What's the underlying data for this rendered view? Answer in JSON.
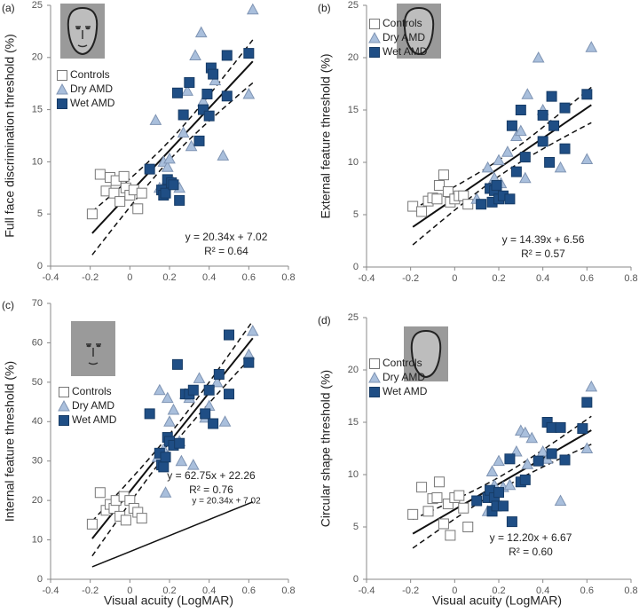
{
  "chart_data": [
    {
      "type": "scatter",
      "panel_label": "(a)",
      "ylabel": "Full face discrimination threshold (%)",
      "xlim": [
        -0.4,
        0.8
      ],
      "xticks": [
        -0.4,
        -0.2,
        0,
        0.2,
        0.4,
        0.6,
        0.8
      ],
      "ylim": [
        0,
        25
      ],
      "yticks": [
        0,
        5,
        10,
        15,
        20,
        25
      ],
      "legend": "upper left",
      "series": [
        {
          "name": "Controls",
          "marker": "square",
          "color": "#ffffff",
          "edge": "#777777",
          "x": [
            -0.19,
            -0.15,
            -0.12,
            -0.1,
            -0.08,
            -0.07,
            -0.05,
            -0.03,
            -0.02,
            0,
            0.02,
            0.04,
            0.06
          ],
          "values": [
            5.0,
            8.8,
            7.2,
            8.5,
            7.0,
            8.2,
            6.2,
            8.6,
            7.5,
            6.8,
            7.3,
            5.5,
            7.0
          ]
        },
        {
          "name": "Dry AMD",
          "marker": "triangle",
          "color": "#a9bfdc",
          "edge": "#7f94b3",
          "x": [
            0.13,
            0.15,
            0.17,
            0.18,
            0.19,
            0.2,
            0.22,
            0.25,
            0.27,
            0.29,
            0.31,
            0.33,
            0.36,
            0.37,
            0.43,
            0.47,
            0.6,
            0.62
          ],
          "values": [
            14,
            7.5,
            10,
            8,
            9.5,
            10.3,
            8,
            7.5,
            12.8,
            16.8,
            11.5,
            20.2,
            22.4,
            15.8,
            17.8,
            10.6,
            16.5,
            24.6
          ]
        },
        {
          "name": "Wet AMD",
          "marker": "square",
          "color": "#1f4e85",
          "edge": "#163b66",
          "x": [
            0.1,
            0.16,
            0.17,
            0.18,
            0.19,
            0.21,
            0.22,
            0.24,
            0.25,
            0.27,
            0.3,
            0.35,
            0.37,
            0.39,
            0.4,
            0.41,
            0.42,
            0.49,
            0.49,
            0.6
          ],
          "values": [
            9.3,
            7.3,
            6.8,
            7.0,
            8.3,
            8.0,
            7.8,
            16.6,
            6.3,
            14.5,
            17.6,
            12,
            15,
            16.5,
            14.4,
            19,
            18.4,
            20.2,
            16.3,
            20.4
          ]
        }
      ],
      "fit": {
        "slope": 20.34,
        "intercept": 7.02,
        "equation": "y = 20.34x + 7.02",
        "r2": "R² = 0.64"
      }
    },
    {
      "type": "scatter",
      "panel_label": "(b)",
      "ylabel": "External feature  threshold (%)",
      "xlim": [
        -0.4,
        0.8
      ],
      "xticks": [
        -0.4,
        -0.2,
        0,
        0.2,
        0.4,
        0.6,
        0.8
      ],
      "ylim": [
        0,
        25
      ],
      "yticks": [
        0,
        5,
        10,
        15,
        20,
        25
      ],
      "legend": "upper left",
      "series": [
        {
          "name": "Controls",
          "marker": "square",
          "color": "#ffffff",
          "edge": "#777777",
          "x": [
            -0.19,
            -0.15,
            -0.12,
            -0.1,
            -0.08,
            -0.07,
            -0.05,
            -0.03,
            -0.02,
            0,
            0.02,
            0.04,
            0.06
          ],
          "values": [
            5.8,
            5.3,
            6.3,
            6.6,
            6.5,
            7.8,
            8.8,
            7.2,
            6.2,
            6.5,
            6.8,
            6.8,
            6.0
          ]
        },
        {
          "name": "Dry AMD",
          "marker": "triangle",
          "color": "#a9bfdc",
          "edge": "#7f94b3",
          "x": [
            0.1,
            0.15,
            0.18,
            0.2,
            0.21,
            0.24,
            0.28,
            0.3,
            0.32,
            0.33,
            0.38,
            0.4,
            0.48,
            0.6,
            0.62
          ],
          "values": [
            6.5,
            9.5,
            8.5,
            10.2,
            8,
            11,
            12.5,
            13,
            8.5,
            16.5,
            20,
            15,
            9.5,
            10.3,
            21
          ]
        },
        {
          "name": "Wet AMD",
          "marker": "square",
          "color": "#1f4e85",
          "edge": "#163b66",
          "x": [
            0.12,
            0.16,
            0.17,
            0.18,
            0.19,
            0.2,
            0.22,
            0.25,
            0.26,
            0.28,
            0.3,
            0.32,
            0.4,
            0.4,
            0.43,
            0.44,
            0.45,
            0.5,
            0.5,
            0.6
          ],
          "values": [
            6,
            7.5,
            6.2,
            7.3,
            7.8,
            6.5,
            6.8,
            6.5,
            13.5,
            9.1,
            15,
            10.5,
            12,
            14.5,
            10,
            16.3,
            13.5,
            15.2,
            11.3,
            16.5
          ]
        }
      ],
      "fit": {
        "slope": 14.39,
        "intercept": 6.56,
        "equation": "y = 14.39x + 6.56",
        "r2": "R² = 0.57"
      }
    },
    {
      "type": "scatter",
      "panel_label": "(c)",
      "ylabel": "Internal feature  threshold (%)",
      "xlabel": "Visual acuity (LogMAR)",
      "xlim": [
        -0.4,
        0.8
      ],
      "xticks": [
        -0.4,
        -0.2,
        0,
        0.2,
        0.4,
        0.6,
        0.8
      ],
      "ylim": [
        0,
        70
      ],
      "yticks": [
        0,
        10,
        20,
        30,
        40,
        50,
        60,
        70
      ],
      "legend": "upper left",
      "series": [
        {
          "name": "Controls",
          "marker": "square",
          "color": "#ffffff",
          "edge": "#777777",
          "x": [
            -0.19,
            -0.15,
            -0.12,
            -0.1,
            -0.08,
            -0.07,
            -0.05,
            -0.03,
            -0.02,
            0,
            0.02,
            0.04,
            0.06
          ],
          "values": [
            14,
            22,
            17.5,
            19,
            18,
            20,
            16,
            21,
            15,
            20,
            18,
            17,
            15.5
          ]
        },
        {
          "name": "Dry AMD",
          "marker": "triangle",
          "color": "#a9bfdc",
          "edge": "#7f94b3",
          "x": [
            0.14,
            0.15,
            0.17,
            0.18,
            0.19,
            0.2,
            0.22,
            0.25,
            0.26,
            0.28,
            0.3,
            0.32,
            0.35,
            0.38,
            0.4,
            0.44,
            0.48,
            0.6,
            0.62
          ],
          "values": [
            31,
            48,
            33,
            22,
            46,
            40,
            43,
            35,
            30,
            47,
            46,
            29,
            51,
            41,
            44,
            50,
            40,
            57,
            63
          ]
        },
        {
          "name": "Wet AMD",
          "marker": "square",
          "color": "#1f4e85",
          "edge": "#163b66",
          "x": [
            0.1,
            0.15,
            0.16,
            0.17,
            0.18,
            0.19,
            0.2,
            0.22,
            0.24,
            0.25,
            0.28,
            0.3,
            0.32,
            0.38,
            0.4,
            0.42,
            0.45,
            0.5,
            0.5,
            0.6
          ],
          "values": [
            42,
            32,
            29,
            28.5,
            31,
            36,
            35,
            34,
            54.5,
            34.5,
            47,
            47,
            48,
            42,
            48,
            39.5,
            52,
            62,
            47,
            55
          ]
        }
      ],
      "fit": {
        "slope": 62.75,
        "intercept": 22.26,
        "equation": "y = 62.75x + 22.26",
        "r2": "R² = 0.76"
      },
      "reference_fit": {
        "slope": 20.34,
        "intercept": 7.02,
        "equation": "y = 20.34x + 7.02"
      }
    },
    {
      "type": "scatter",
      "panel_label": "(d)",
      "ylabel": "Circular shape threshold (%)",
      "xlabel": "Visual acuity (LogMAR)",
      "xlim": [
        -0.4,
        0.8
      ],
      "xticks": [
        -0.4,
        -0.2,
        0,
        0.2,
        0.4,
        0.6,
        0.8
      ],
      "ylim": [
        0,
        25
      ],
      "yticks": [
        0,
        5,
        10,
        15,
        20,
        25
      ],
      "legend": "upper left",
      "series": [
        {
          "name": "Controls",
          "marker": "square",
          "color": "#ffffff",
          "edge": "#777777",
          "x": [
            -0.19,
            -0.15,
            -0.12,
            -0.1,
            -0.08,
            -0.07,
            -0.05,
            -0.03,
            -0.02,
            0,
            0.02,
            0.04,
            0.06
          ],
          "values": [
            6.2,
            8.8,
            6.5,
            7.7,
            7.8,
            9.3,
            5.3,
            7.2,
            4.2,
            7.8,
            8.0,
            6.8,
            5.0
          ]
        },
        {
          "name": "Dry AMD",
          "marker": "triangle",
          "color": "#a9bfdc",
          "edge": "#7f94b3",
          "x": [
            0.15,
            0.17,
            0.18,
            0.2,
            0.22,
            0.25,
            0.28,
            0.3,
            0.32,
            0.33,
            0.35,
            0.4,
            0.42,
            0.48,
            0.6,
            0.62
          ],
          "values": [
            6.5,
            10.3,
            9,
            11.3,
            8.8,
            9,
            12.2,
            14.2,
            14,
            11,
            13.5,
            12.2,
            11.5,
            7.5,
            12.5,
            18.4
          ]
        },
        {
          "name": "Wet AMD",
          "marker": "square",
          "color": "#1f4e85",
          "edge": "#163b66",
          "x": [
            0.1,
            0.15,
            0.16,
            0.17,
            0.18,
            0.19,
            0.2,
            0.22,
            0.25,
            0.26,
            0.3,
            0.32,
            0.38,
            0.42,
            0.44,
            0.44,
            0.48,
            0.5,
            0.6,
            0.58
          ],
          "values": [
            7.5,
            7.8,
            8.5,
            6.5,
            7.8,
            7.0,
            8.3,
            7.0,
            11.5,
            5.5,
            9.3,
            9.5,
            11.3,
            15,
            14.5,
            12,
            14.5,
            11.4,
            16.9,
            14.4
          ]
        }
      ],
      "fit": {
        "slope": 12.2,
        "intercept": 6.67,
        "equation": "y = 12.20x + 6.67",
        "r2": "R² = 0.60"
      }
    }
  ]
}
